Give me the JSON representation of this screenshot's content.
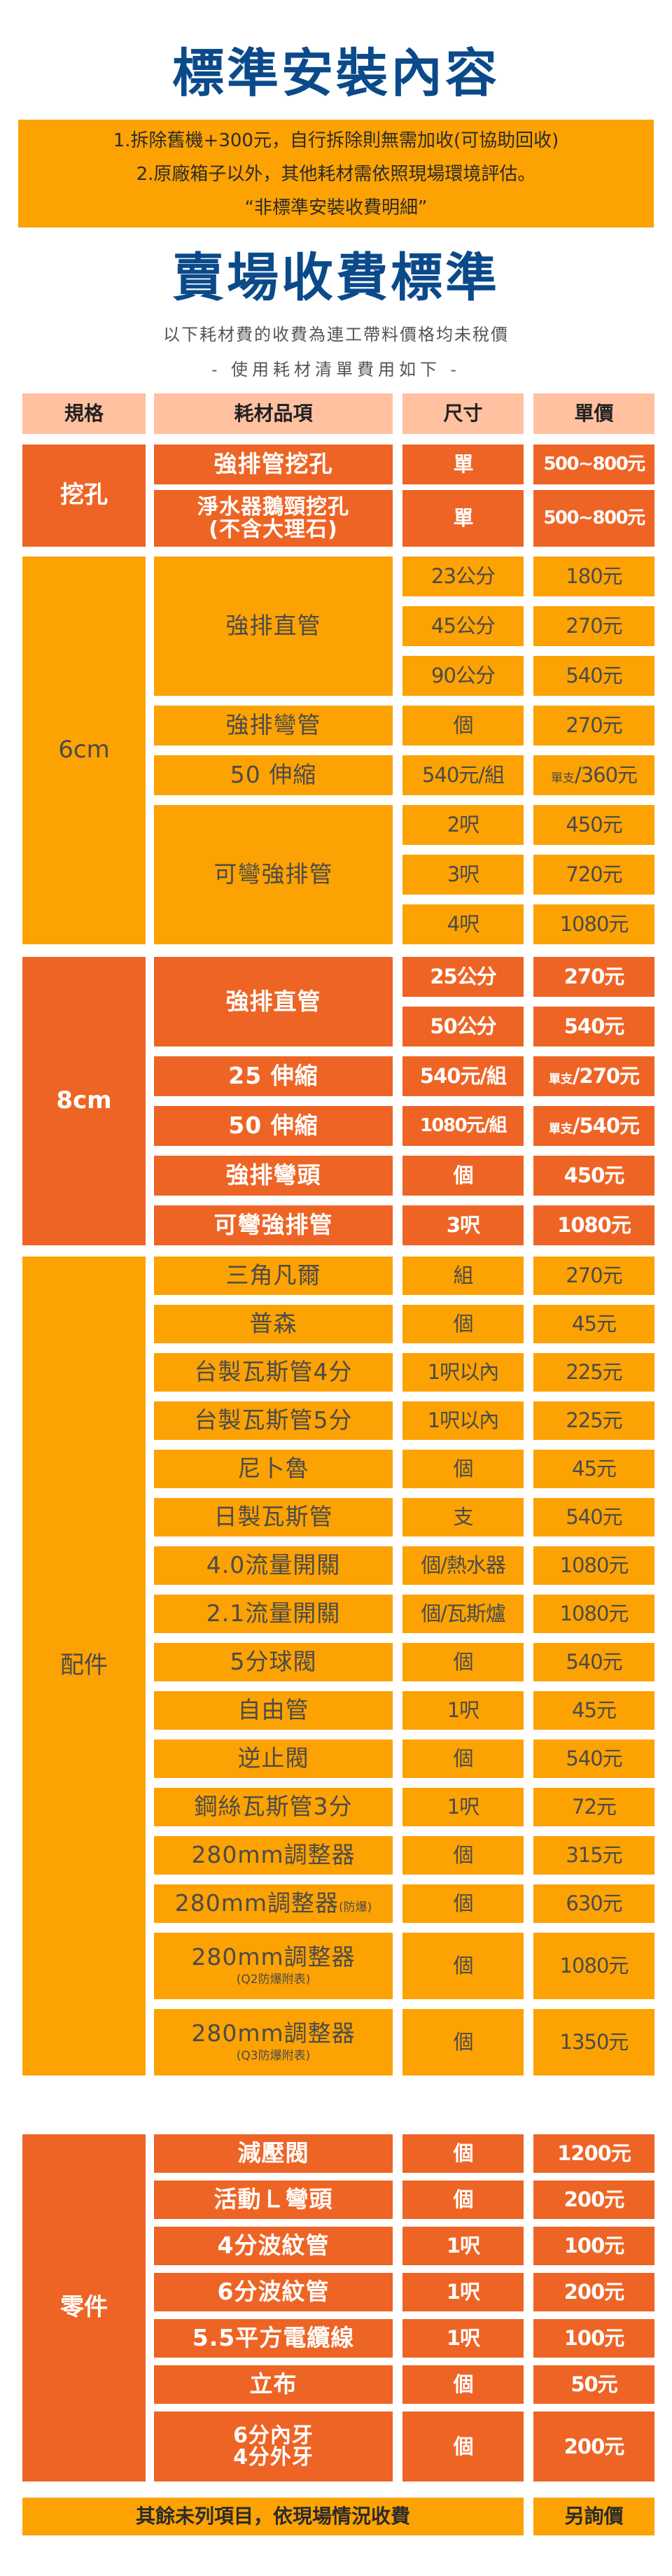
{
  "title_install": "標準安裝內容",
  "install_notes": [
    "1.拆除舊機+300元，自行拆除則無需加收(可協助回收)",
    "2.原廠箱子以外，其他耗材需依照現場環境評估。",
    "“非標準安裝收費明細”"
  ],
  "title_fees": "賣場收費標準",
  "subtitle": "以下耗材費的收費為連工帶料價格均未稅價",
  "subtitle2": "- 使用耗材清單費用如下 -",
  "colors": {
    "navy": "#0b4a8a",
    "dark_orange": "#ee6425",
    "orange": "#fca202",
    "header": "#ffc1a0"
  },
  "table": {
    "headers": [
      "規格",
      "耗材品項",
      "尺寸",
      "單價"
    ],
    "sections": [
      {
        "category": "挖孔",
        "theme": "dark",
        "items": [
          {
            "name": "強排管挖孔",
            "rows": [
              {
                "size": "單",
                "price": "500~800元"
              }
            ]
          },
          {
            "name": "淨水器鵝頸挖孔",
            "name_line2": "(不含大理石)",
            "rows": [
              {
                "size": "單",
                "price": "500~800元"
              }
            ]
          }
        ]
      },
      {
        "category": "6cm",
        "theme": "light",
        "items": [
          {
            "name": "強排直管",
            "rows": [
              {
                "size": "23公分",
                "price": "180元"
              },
              {
                "size": "45公分",
                "price": "270元"
              },
              {
                "size": "90公分",
                "price": "540元"
              }
            ]
          },
          {
            "name": "強排彎管",
            "rows": [
              {
                "size": "個",
                "price": "270元"
              }
            ]
          },
          {
            "name": "50 伸縮",
            "rows": [
              {
                "size": "540元/組",
                "price_note": "單支",
                "price": "/360元"
              }
            ]
          },
          {
            "name": "可彎強排管",
            "rows": [
              {
                "size": "2呎",
                "price": "450元"
              },
              {
                "size": "3呎",
                "price": "720元"
              },
              {
                "size": "4呎",
                "price": "1080元"
              }
            ]
          }
        ]
      },
      {
        "category": "8cm",
        "theme": "dark",
        "items": [
          {
            "name": "強排直管",
            "rows": [
              {
                "size": "25公分",
                "price": "270元"
              },
              {
                "size": "50公分",
                "price": "540元"
              }
            ]
          },
          {
            "name": "25 伸縮",
            "rows": [
              {
                "size": "540元/組",
                "price_note": "單支",
                "price": "/270元"
              }
            ]
          },
          {
            "name": "50 伸縮",
            "rows": [
              {
                "size": "1080元/組",
                "price_note": "單支",
                "price": "/540元"
              }
            ]
          },
          {
            "name": "強排彎頭",
            "rows": [
              {
                "size": "個",
                "price": "450元"
              }
            ]
          },
          {
            "name": "可彎強排管",
            "rows": [
              {
                "size": "3呎",
                "price": "1080元"
              }
            ]
          }
        ]
      },
      {
        "category": "配件",
        "theme": "light",
        "items": [
          {
            "name": "三角凡爾",
            "rows": [
              {
                "size": "組",
                "price": "270元"
              }
            ]
          },
          {
            "name": "普森",
            "rows": [
              {
                "size": "個",
                "price": "45元"
              }
            ]
          },
          {
            "name": "台製瓦斯管4分",
            "rows": [
              {
                "size": "1呎以內",
                "price": "225元"
              }
            ]
          },
          {
            "name": "台製瓦斯管5分",
            "rows": [
              {
                "size": "1呎以內",
                "price": "225元"
              }
            ]
          },
          {
            "name": "尼卜魯",
            "rows": [
              {
                "size": "個",
                "price": "45元"
              }
            ]
          },
          {
            "name": "日製瓦斯管",
            "rows": [
              {
                "size": "支",
                "price": "540元"
              }
            ]
          },
          {
            "name": "4.0流量開關",
            "rows": [
              {
                "size": "個/熱水器",
                "price": "1080元"
              }
            ]
          },
          {
            "name": "2.1流量開關",
            "rows": [
              {
                "size": "個/瓦斯爐",
                "price": "1080元"
              }
            ]
          },
          {
            "name": "5分球閥",
            "rows": [
              {
                "size": "個",
                "price": "540元"
              }
            ]
          },
          {
            "name": "自由管",
            "rows": [
              {
                "size": "1呎",
                "price": "45元"
              }
            ]
          },
          {
            "name": "逆止閥",
            "rows": [
              {
                "size": "個",
                "price": "540元"
              }
            ]
          },
          {
            "name": "鋼絲瓦斯管3分",
            "rows": [
              {
                "size": "1呎",
                "price": "72元"
              }
            ]
          },
          {
            "name": "280mm調整器",
            "rows": [
              {
                "size": "個",
                "price": "315元"
              }
            ]
          },
          {
            "name": "280mm調整器",
            "name_note": "(防爆)",
            "rows": [
              {
                "size": "個",
                "price": "630元"
              }
            ]
          },
          {
            "name": "280mm調整器",
            "name_sub": "(Q2防爆附表)",
            "rows": [
              {
                "size": "個",
                "price": "1080元"
              }
            ]
          },
          {
            "name": "280mm調整器",
            "name_sub": "(Q3防爆附表)",
            "rows": [
              {
                "size": "個",
                "price": "1350元"
              }
            ]
          }
        ]
      },
      {
        "category": "零件",
        "theme": "dark",
        "items": [
          {
            "name": "減壓閥",
            "rows": [
              {
                "size": "個",
                "price": "1200元"
              }
            ]
          },
          {
            "name": "活動Ｌ彎頭",
            "rows": [
              {
                "size": "個",
                "price": "200元"
              }
            ]
          },
          {
            "name": "4分波紋管",
            "rows": [
              {
                "size": "1呎",
                "price": "100元"
              }
            ]
          },
          {
            "name": "6分波紋管",
            "rows": [
              {
                "size": "1呎",
                "price": "200元"
              }
            ]
          },
          {
            "name": "5.5平方電纜線",
            "rows": [
              {
                "size": "1呎",
                "price": "100元"
              }
            ]
          },
          {
            "name": "立布",
            "rows": [
              {
                "size": "個",
                "price": "50元"
              }
            ]
          },
          {
            "name": "6分內牙",
            "name_line2": "4分外牙",
            "rows": [
              {
                "size": "個",
                "price": "200元"
              }
            ]
          }
        ]
      }
    ],
    "footer": {
      "text": "其餘未列項目，依現場情況收費",
      "price": "另詢價"
    }
  }
}
